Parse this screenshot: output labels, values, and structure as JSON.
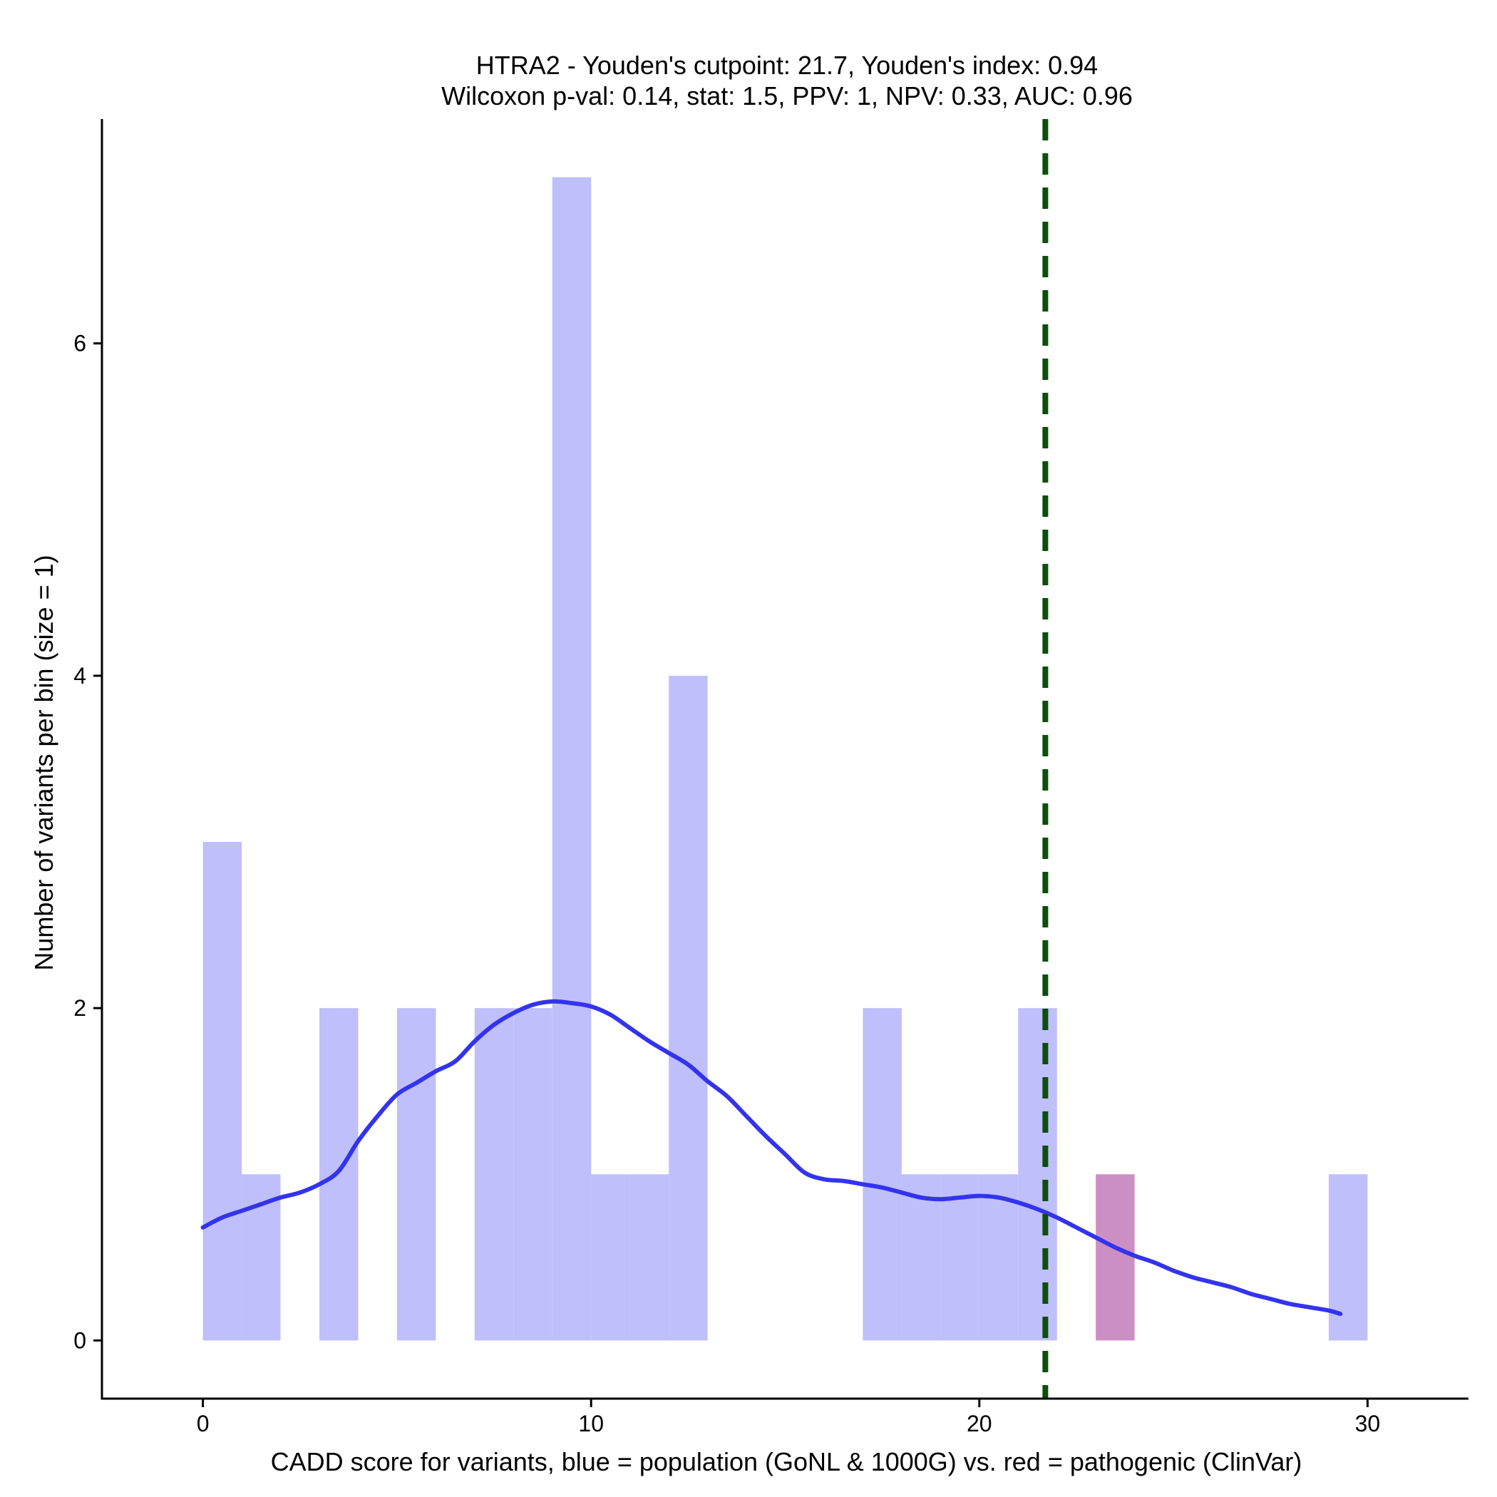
{
  "chart_data": {
    "type": "histogram",
    "title_line1": "HTRA2 - Youden's cutpoint: 21.7, Youden's index: 0.94",
    "title_line2": "Wilcoxon p-val: 0.14, stat: 1.5, PPV: 1, NPV: 0.33, AUC: 0.96",
    "xlabel": "CADD score for variants, blue = population (GoNL & 1000G) vs. red = pathogenic (ClinVar)",
    "ylabel": "Number of variants per bin (size = 1)",
    "xlim": [
      -2.6,
      32.6
    ],
    "ylim": [
      -0.35,
      7.35
    ],
    "x_ticks": [
      0,
      10,
      20,
      30
    ],
    "y_ticks": [
      0,
      2,
      4,
      6
    ],
    "bin_size": 1,
    "cutpoint": 21.7,
    "colors": {
      "population": "#bfbffc",
      "pathogenic": "#cc8fc4",
      "density": "#3333ee",
      "cutpoint": "#0b4f0b",
      "axis": "#000000"
    },
    "series": [
      {
        "name": "population",
        "bins": [
          {
            "x0": 0,
            "x1": 1,
            "count": 3
          },
          {
            "x0": 1,
            "x1": 2,
            "count": 1
          },
          {
            "x0": 3,
            "x1": 4,
            "count": 2
          },
          {
            "x0": 5,
            "x1": 6,
            "count": 2
          },
          {
            "x0": 7,
            "x1": 8,
            "count": 2
          },
          {
            "x0": 8,
            "x1": 9,
            "count": 2
          },
          {
            "x0": 9,
            "x1": 10,
            "count": 7
          },
          {
            "x0": 10,
            "x1": 11,
            "count": 1
          },
          {
            "x0": 11,
            "x1": 12,
            "count": 1
          },
          {
            "x0": 12,
            "x1": 13,
            "count": 4
          },
          {
            "x0": 17,
            "x1": 18,
            "count": 2
          },
          {
            "x0": 18,
            "x1": 19,
            "count": 1
          },
          {
            "x0": 19,
            "x1": 20,
            "count": 1
          },
          {
            "x0": 20,
            "x1": 21,
            "count": 1
          },
          {
            "x0": 21,
            "x1": 22,
            "count": 2
          },
          {
            "x0": 29,
            "x1": 30,
            "count": 1
          }
        ]
      },
      {
        "name": "pathogenic",
        "bins": [
          {
            "x0": 23,
            "x1": 24,
            "count": 1
          }
        ]
      }
    ],
    "density_curve": [
      [
        0.0,
        0.68
      ],
      [
        0.5,
        0.74
      ],
      [
        1.0,
        0.78
      ],
      [
        1.5,
        0.82
      ],
      [
        2.0,
        0.86
      ],
      [
        2.5,
        0.89
      ],
      [
        3.0,
        0.94
      ],
      [
        3.5,
        1.02
      ],
      [
        4.0,
        1.2
      ],
      [
        4.5,
        1.35
      ],
      [
        5.0,
        1.48
      ],
      [
        5.5,
        1.55
      ],
      [
        6.0,
        1.62
      ],
      [
        6.5,
        1.68
      ],
      [
        7.0,
        1.8
      ],
      [
        7.5,
        1.9
      ],
      [
        8.0,
        1.97
      ],
      [
        8.5,
        2.02
      ],
      [
        9.0,
        2.04
      ],
      [
        9.5,
        2.03
      ],
      [
        10.0,
        2.01
      ],
      [
        10.5,
        1.96
      ],
      [
        11.0,
        1.88
      ],
      [
        11.5,
        1.8
      ],
      [
        12.0,
        1.73
      ],
      [
        12.5,
        1.66
      ],
      [
        13.0,
        1.56
      ],
      [
        13.5,
        1.47
      ],
      [
        14.0,
        1.35
      ],
      [
        14.5,
        1.23
      ],
      [
        15.0,
        1.12
      ],
      [
        15.5,
        1.01
      ],
      [
        16.0,
        0.97
      ],
      [
        16.5,
        0.96
      ],
      [
        17.0,
        0.94
      ],
      [
        17.5,
        0.92
      ],
      [
        18.0,
        0.89
      ],
      [
        18.5,
        0.86
      ],
      [
        19.0,
        0.85
      ],
      [
        19.5,
        0.86
      ],
      [
        20.0,
        0.87
      ],
      [
        20.5,
        0.86
      ],
      [
        21.0,
        0.83
      ],
      [
        21.5,
        0.79
      ],
      [
        22.0,
        0.74
      ],
      [
        22.5,
        0.68
      ],
      [
        23.0,
        0.62
      ],
      [
        23.5,
        0.56
      ],
      [
        24.0,
        0.51
      ],
      [
        24.5,
        0.47
      ],
      [
        25.0,
        0.42
      ],
      [
        25.5,
        0.38
      ],
      [
        26.0,
        0.35
      ],
      [
        26.5,
        0.32
      ],
      [
        27.0,
        0.28
      ],
      [
        27.5,
        0.25
      ],
      [
        28.0,
        0.22
      ],
      [
        28.5,
        0.2
      ],
      [
        29.0,
        0.18
      ],
      [
        29.3,
        0.16
      ]
    ]
  }
}
